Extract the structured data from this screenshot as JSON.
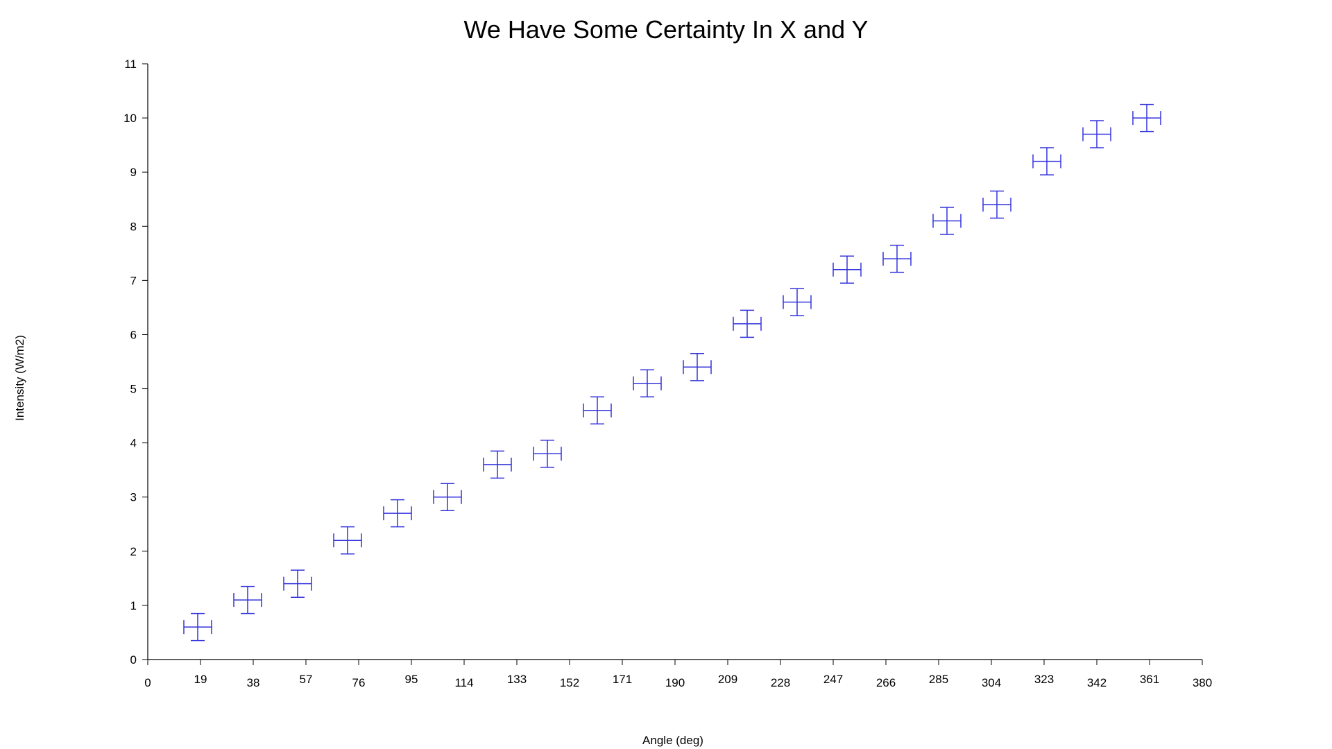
{
  "chart_data": {
    "type": "scatter",
    "title": "We Have Some Certainty In X and Y",
    "xlabel": "Angle (deg)",
    "ylabel": "Intensity (W/m2)",
    "xlim": [
      0,
      380
    ],
    "ylim": [
      0,
      11
    ],
    "x_ticks": [
      0,
      19,
      38,
      57,
      76,
      95,
      114,
      133,
      152,
      171,
      190,
      209,
      228,
      247,
      266,
      285,
      304,
      323,
      342,
      361,
      380
    ],
    "y_ticks": [
      0,
      1,
      2,
      3,
      4,
      5,
      6,
      7,
      8,
      9,
      10,
      11
    ],
    "grid": false,
    "marker_color": "#3333dd",
    "x_error": 5,
    "y_error": 0.25,
    "series": [
      {
        "x": [
          18,
          36,
          54,
          72,
          90,
          108,
          126,
          144,
          162,
          180,
          198,
          216,
          234,
          252,
          270,
          288,
          306,
          324,
          342,
          360
        ],
        "y": [
          0.6,
          1.1,
          1.4,
          2.2,
          2.7,
          3.0,
          3.6,
          3.8,
          4.6,
          5.1,
          5.4,
          6.2,
          6.6,
          7.2,
          7.4,
          8.1,
          8.4,
          9.2,
          9.7,
          10.0
        ]
      }
    ]
  }
}
